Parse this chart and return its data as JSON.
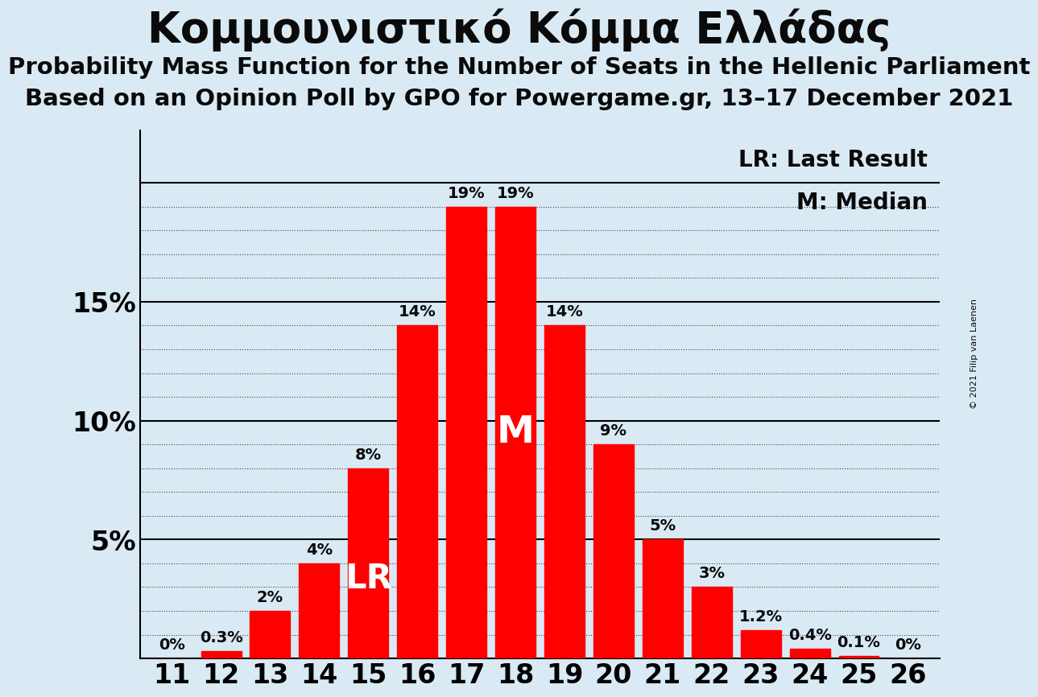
{
  "title": "Κομμουνιστικό Κόμμα Ελλάδας",
  "subtitle1": "Probability Mass Function for the Number of Seats in the Hellenic Parliament",
  "subtitle2": "Based on an Opinion Poll by GPO for Powergame.gr, 13–17 December 2021",
  "copyright": "© 2021 Filip van Laenen",
  "seats": [
    11,
    12,
    13,
    14,
    15,
    16,
    17,
    18,
    19,
    20,
    21,
    22,
    23,
    24,
    25,
    26
  ],
  "probabilities": [
    0.0,
    0.003,
    0.02,
    0.04,
    0.08,
    0.14,
    0.19,
    0.19,
    0.14,
    0.09,
    0.05,
    0.03,
    0.012,
    0.004,
    0.001,
    0.0
  ],
  "bar_labels": [
    "0%",
    "0.3%",
    "2%",
    "4%",
    "8%",
    "14%",
    "19%",
    "19%",
    "14%",
    "9%",
    "5%",
    "3%",
    "1.2%",
    "0.4%",
    "0.1%",
    "0%"
  ],
  "bar_color": "#ff0000",
  "background_color": "#daeaf5",
  "text_color": "#0a0a0a",
  "lr_seat": 15,
  "median_seat": 18,
  "lr_label": "LR",
  "median_label": "M",
  "legend_lr": "LR: Last Result",
  "legend_m": "M: Median",
  "solid_lines": [
    0.0,
    0.05,
    0.1,
    0.15,
    0.2
  ],
  "yticks": [
    0.05,
    0.1,
    0.15
  ],
  "ytick_labels": [
    "5%",
    "10%",
    "15%"
  ],
  "ylim": [
    0,
    0.222
  ],
  "ylabel_fontsize": 24,
  "xlabel_fontsize": 24,
  "bar_label_fontsize": 14,
  "title_fontsize": 38,
  "subtitle_fontsize": 21,
  "legend_fontsize": 20
}
